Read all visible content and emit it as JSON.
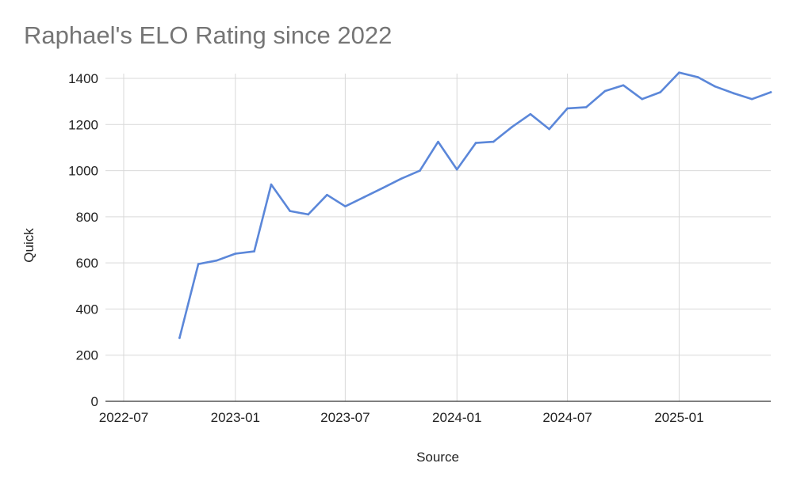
{
  "chart_data": {
    "type": "line",
    "title": "Raphael's ELO Rating since 2022",
    "xlabel": "Source",
    "ylabel": "Quick",
    "ylim": [
      0,
      1400
    ],
    "xlim": [
      "2022-06-01",
      "2025-06-01"
    ],
    "y_ticks": [
      0,
      200,
      400,
      600,
      800,
      1000,
      1200,
      1400
    ],
    "x_ticks": [
      "2022-07",
      "2023-01",
      "2023-07",
      "2024-01",
      "2024-07",
      "2025-01"
    ],
    "grid": true,
    "legend": "none",
    "colors": {
      "series": "#5b87d9",
      "grid": "#d9d9d9",
      "title": "#757575"
    },
    "series": [
      {
        "x": [
          "2022-10-01",
          "2022-11-01",
          "2022-12-01",
          "2023-01-01",
          "2023-02-01",
          "2023-03-01",
          "2023-04-01",
          "2023-05-01",
          "2023-06-01",
          "2023-07-01",
          "2023-08-01",
          "2023-09-01",
          "2023-10-01",
          "2023-11-01",
          "2023-12-01",
          "2024-01-01",
          "2024-02-01",
          "2024-03-01",
          "2024-04-01",
          "2024-05-01",
          "2024-06-01",
          "2024-07-01",
          "2024-08-01",
          "2024-09-01",
          "2024-10-01",
          "2024-11-01",
          "2024-12-01",
          "2025-01-01",
          "2025-02-01",
          "2025-03-01",
          "2025-04-01",
          "2025-05-01",
          "2025-06-01"
        ],
        "y": [
          275,
          595,
          610,
          640,
          650,
          940,
          825,
          810,
          895,
          845,
          885,
          925,
          965,
          1000,
          1125,
          1005,
          1120,
          1125,
          1190,
          1245,
          1180,
          1270,
          1275,
          1345,
          1370,
          1310,
          1340,
          1425,
          1405,
          1365,
          1335,
          1310,
          1340
        ]
      }
    ]
  }
}
